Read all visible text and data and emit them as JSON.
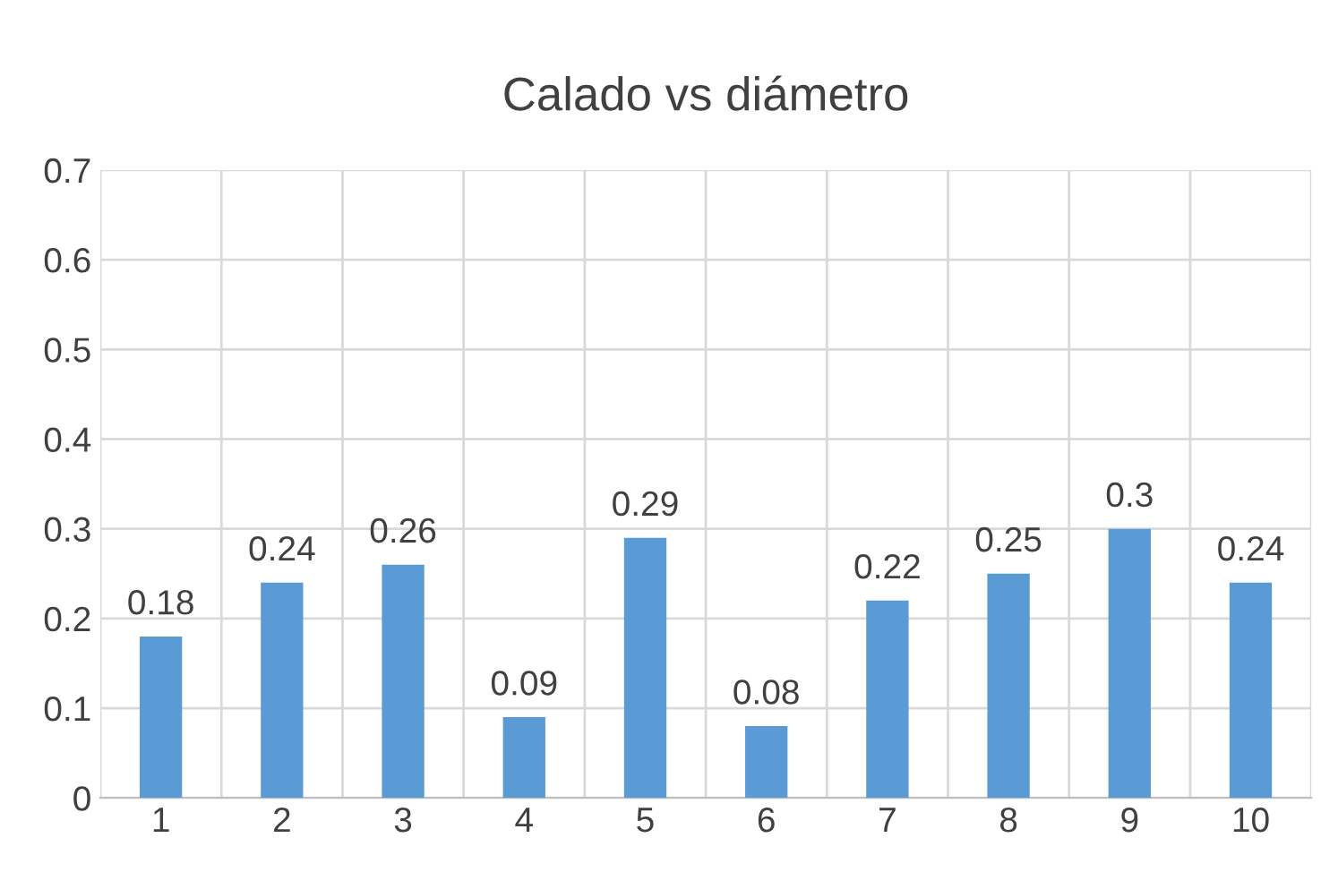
{
  "chart_data": {
    "type": "bar",
    "title": "Calado vs diámetro",
    "categories": [
      "1",
      "2",
      "3",
      "4",
      "5",
      "6",
      "7",
      "8",
      "9",
      "10"
    ],
    "values": [
      0.18,
      0.24,
      0.26,
      0.09,
      0.29,
      0.08,
      0.22,
      0.25,
      0.3,
      0.24
    ],
    "color": "#5b9bd5",
    "ylim": [
      0,
      0.7
    ],
    "yticks": [
      0,
      0.1,
      0.2,
      0.3,
      0.4,
      0.5,
      0.6,
      0.7
    ],
    "grid": true,
    "data_labels": true,
    "legend": false
  }
}
